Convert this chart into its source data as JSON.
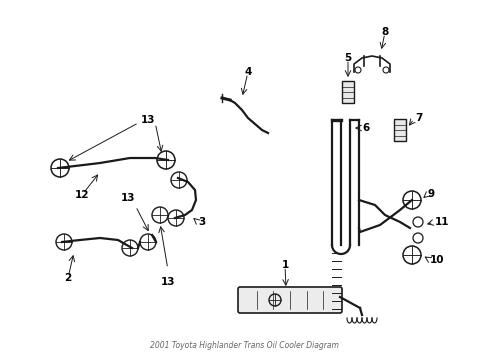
{
  "title": "2001 Toyota Highlander Trans Oil Cooler Diagram",
  "bg_color": "#ffffff",
  "line_color": "#1a1a1a",
  "label_color": "#000000",
  "fig_width": 4.89,
  "fig_height": 3.6,
  "dpi": 100
}
